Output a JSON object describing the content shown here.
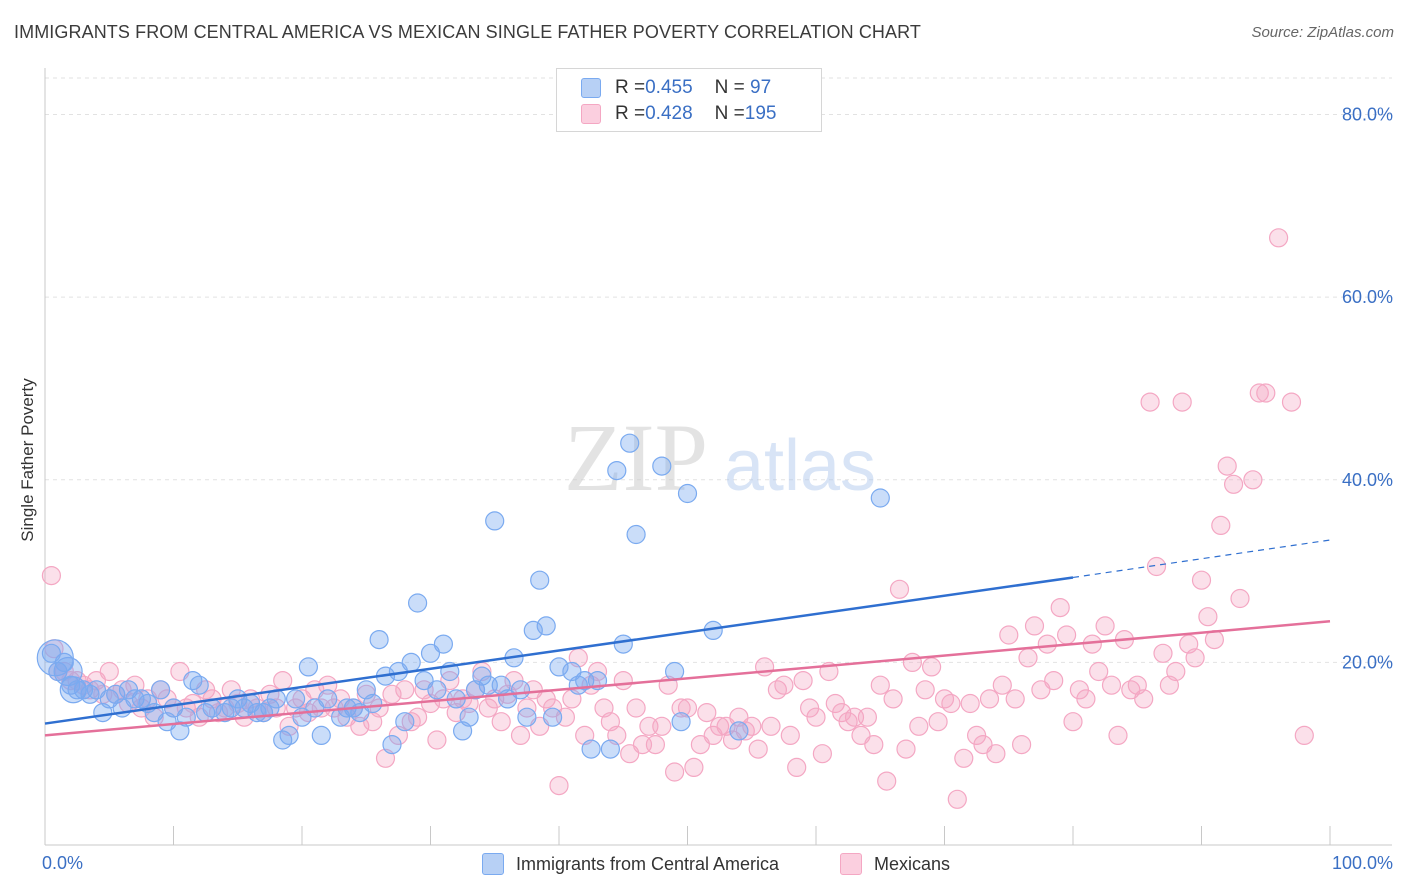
{
  "title": "IMMIGRANTS FROM CENTRAL AMERICA VS MEXICAN SINGLE FATHER POVERTY CORRELATION CHART",
  "source": "Source: ZipAtlas.com",
  "watermark": {
    "zip": "ZIP",
    "atlas": "atlas"
  },
  "legend": {
    "rows": [
      {
        "r_label": "R = ",
        "r_value": "0.455",
        "n_label": "N = ",
        "n_value": " 97",
        "color": "#7aaaf0"
      },
      {
        "r_label": "R = ",
        "r_value": "0.428",
        "n_label": "N = ",
        "n_value": "195",
        "color": "#f4a7c3"
      }
    ]
  },
  "bottom_legend": [
    {
      "label": "Immigrants from Central America",
      "color": "#7aaaf0"
    },
    {
      "label": "Mexicans",
      "color": "#f4a7c3"
    }
  ],
  "chart_data": {
    "type": "scatter",
    "ylabel": "Single Father Poverty",
    "x_tick_labels": [
      "0.0%",
      "100.0%"
    ],
    "y_tick_labels": [
      "20.0%",
      "40.0%",
      "60.0%",
      "80.0%"
    ],
    "y_ticks": [
      20,
      40,
      60,
      80
    ],
    "xlim": [
      0,
      100
    ],
    "ylim": [
      0,
      84
    ],
    "grid": true,
    "series": [
      {
        "name": "Immigrants from Central America",
        "color": "#7aaaf0",
        "line_color": "#2f6fd0",
        "trend": {
          "x0": 0,
          "y0": 13.3,
          "x1": 80,
          "y1": 29.3,
          "dash_to_x": 100,
          "dash_to_y": 33.4
        },
        "points": [
          [
            0.5,
            21
          ],
          [
            1,
            19
          ],
          [
            1.5,
            20
          ],
          [
            2,
            17.5
          ],
          [
            2.5,
            17
          ],
          [
            3,
            17
          ],
          [
            3.5,
            16.5
          ],
          [
            4,
            17
          ],
          [
            4.5,
            14.5
          ],
          [
            5,
            16
          ],
          [
            5.5,
            16.5
          ],
          [
            6,
            15
          ],
          [
            6.5,
            17
          ],
          [
            7,
            16
          ],
          [
            7.5,
            16
          ],
          [
            8,
            15.5
          ],
          [
            8.5,
            14.5
          ],
          [
            9,
            17
          ],
          [
            9.5,
            13.5
          ],
          [
            10,
            15
          ],
          [
            10.5,
            12.5
          ],
          [
            11,
            14
          ],
          [
            11.5,
            18
          ],
          [
            12,
            17.5
          ],
          [
            12.5,
            14.5
          ],
          [
            13,
            15
          ],
          [
            14,
            14.5
          ],
          [
            14.5,
            15
          ],
          [
            15,
            16
          ],
          [
            15.5,
            15
          ],
          [
            16,
            15.5
          ],
          [
            16.5,
            14.5
          ],
          [
            17,
            14.5
          ],
          [
            17.5,
            15
          ],
          [
            18,
            16
          ],
          [
            18.5,
            11.5
          ],
          [
            19,
            12
          ],
          [
            19.5,
            16
          ],
          [
            20,
            14
          ],
          [
            20.5,
            19.5
          ],
          [
            21,
            15
          ],
          [
            21.5,
            12
          ],
          [
            22,
            16
          ],
          [
            23,
            14
          ],
          [
            23.5,
            15
          ],
          [
            24,
            15
          ],
          [
            24.5,
            14.5
          ],
          [
            25,
            17
          ],
          [
            25.5,
            15.5
          ],
          [
            26,
            22.5
          ],
          [
            26.5,
            18.5
          ],
          [
            27,
            11
          ],
          [
            27.5,
            19
          ],
          [
            28,
            13.5
          ],
          [
            28.5,
            20
          ],
          [
            29,
            26.5
          ],
          [
            29.5,
            18
          ],
          [
            30,
            21
          ],
          [
            30.5,
            17
          ],
          [
            31,
            22
          ],
          [
            31.5,
            19
          ],
          [
            32,
            16
          ],
          [
            32.5,
            12.5
          ],
          [
            33,
            14
          ],
          [
            33.5,
            17
          ],
          [
            34,
            18.5
          ],
          [
            34.5,
            17.5
          ],
          [
            35,
            35.5
          ],
          [
            35.5,
            17.5
          ],
          [
            36,
            16
          ],
          [
            36.5,
            20.5
          ],
          [
            37,
            17
          ],
          [
            37.5,
            14
          ],
          [
            38,
            23.5
          ],
          [
            38.5,
            29
          ],
          [
            39,
            24
          ],
          [
            39.5,
            14
          ],
          [
            40,
            19.5
          ],
          [
            41,
            19
          ],
          [
            41.5,
            17.5
          ],
          [
            42,
            18
          ],
          [
            42.5,
            10.5
          ],
          [
            43,
            18
          ],
          [
            44,
            10.5
          ],
          [
            44.5,
            41
          ],
          [
            45,
            22
          ],
          [
            45.5,
            44
          ],
          [
            46,
            34
          ],
          [
            48,
            41.5
          ],
          [
            49,
            19
          ],
          [
            49.5,
            13.5
          ],
          [
            50,
            38.5
          ],
          [
            52,
            23.5
          ],
          [
            54,
            12.5
          ],
          [
            65,
            38
          ]
        ]
      },
      {
        "name": "Mexicans",
        "color": "#f4a7c3",
        "line_color": "#e4709a",
        "trend": {
          "x0": 0,
          "y0": 12.0,
          "x1": 100,
          "y1": 24.5
        },
        "points": [
          [
            0.5,
            29.5
          ],
          [
            0.7,
            21.5
          ],
          [
            1,
            19
          ],
          [
            1.5,
            19
          ],
          [
            2,
            18
          ],
          [
            2.5,
            18
          ],
          [
            3,
            17.5
          ],
          [
            3.5,
            17
          ],
          [
            4,
            18
          ],
          [
            4.5,
            16.5
          ],
          [
            5,
            19
          ],
          [
            5.5,
            16.5
          ],
          [
            6,
            17
          ],
          [
            6.5,
            15.5
          ],
          [
            7,
            17.5
          ],
          [
            7.5,
            15
          ],
          [
            8,
            16
          ],
          [
            8.5,
            14
          ],
          [
            9,
            17
          ],
          [
            9.5,
            16
          ],
          [
            10,
            15
          ],
          [
            10.5,
            19
          ],
          [
            11,
            15
          ],
          [
            11.5,
            15.5
          ],
          [
            12,
            14
          ],
          [
            12.5,
            17
          ],
          [
            13,
            16
          ],
          [
            13.5,
            14.5
          ],
          [
            14,
            15
          ],
          [
            14.5,
            17
          ],
          [
            15,
            15.5
          ],
          [
            15.5,
            14
          ],
          [
            16,
            16
          ],
          [
            16.5,
            15
          ],
          [
            17,
            14.5
          ],
          [
            17.5,
            16.5
          ],
          [
            18,
            15
          ],
          [
            18.5,
            18
          ],
          [
            19,
            13
          ],
          [
            19.5,
            15
          ],
          [
            20,
            16
          ],
          [
            20.5,
            14.5
          ],
          [
            21,
            17
          ],
          [
            21.5,
            15
          ],
          [
            22,
            17.5
          ],
          [
            22.5,
            15
          ],
          [
            23,
            16
          ],
          [
            23.5,
            14
          ],
          [
            24,
            15
          ],
          [
            24.5,
            13
          ],
          [
            25,
            16.5
          ],
          [
            25.5,
            13.5
          ],
          [
            26,
            15
          ],
          [
            26.5,
            9.5
          ],
          [
            27,
            16.5
          ],
          [
            27.5,
            12
          ],
          [
            28,
            17
          ],
          [
            28.5,
            13.5
          ],
          [
            29,
            14
          ],
          [
            29.5,
            17
          ],
          [
            30,
            15.5
          ],
          [
            30.5,
            11.5
          ],
          [
            31,
            16
          ],
          [
            31.5,
            18
          ],
          [
            32,
            14.5
          ],
          [
            32.5,
            16
          ],
          [
            33,
            15.5
          ],
          [
            33.5,
            17
          ],
          [
            34,
            19
          ],
          [
            34.5,
            15
          ],
          [
            35,
            16
          ],
          [
            35.5,
            13.5
          ],
          [
            36,
            16.5
          ],
          [
            36.5,
            18
          ],
          [
            37,
            12
          ],
          [
            37.5,
            15
          ],
          [
            38,
            17
          ],
          [
            38.5,
            13
          ],
          [
            39,
            16
          ],
          [
            39.5,
            15
          ],
          [
            40,
            6.5
          ],
          [
            40.5,
            14
          ],
          [
            41,
            16
          ],
          [
            41.5,
            20.5
          ],
          [
            42,
            12
          ],
          [
            42.5,
            17.5
          ],
          [
            43,
            19
          ],
          [
            43.5,
            15
          ],
          [
            44,
            13.5
          ],
          [
            44.5,
            12
          ],
          [
            45,
            18
          ],
          [
            45.5,
            10
          ],
          [
            46,
            15
          ],
          [
            46.5,
            11
          ],
          [
            47,
            13
          ],
          [
            47.5,
            11
          ],
          [
            48,
            13
          ],
          [
            48.5,
            17.5
          ],
          [
            49,
            8
          ],
          [
            49.5,
            15
          ],
          [
            50,
            15
          ],
          [
            50.5,
            8.5
          ],
          [
            51,
            11
          ],
          [
            51.5,
            14.5
          ],
          [
            52,
            12
          ],
          [
            52.5,
            13
          ],
          [
            53,
            13
          ],
          [
            53.5,
            11.5
          ],
          [
            54,
            14
          ],
          [
            54.5,
            12.5
          ],
          [
            55,
            13
          ],
          [
            55.5,
            10.5
          ],
          [
            56,
            19.5
          ],
          [
            56.5,
            13
          ],
          [
            57,
            17
          ],
          [
            57.5,
            17.5
          ],
          [
            58,
            12
          ],
          [
            58.5,
            8.5
          ],
          [
            59,
            18
          ],
          [
            59.5,
            15
          ],
          [
            60,
            14
          ],
          [
            60.5,
            10
          ],
          [
            61,
            19
          ],
          [
            61.5,
            15.5
          ],
          [
            62,
            14.5
          ],
          [
            62.5,
            13.5
          ],
          [
            63,
            14
          ],
          [
            63.5,
            12
          ],
          [
            64,
            14
          ],
          [
            64.5,
            11
          ],
          [
            65,
            17.5
          ],
          [
            65.5,
            7
          ],
          [
            66,
            16
          ],
          [
            66.5,
            28
          ],
          [
            67,
            10.5
          ],
          [
            67.5,
            20
          ],
          [
            68,
            13
          ],
          [
            68.5,
            17
          ],
          [
            69,
            19.5
          ],
          [
            69.5,
            13.5
          ],
          [
            70,
            16
          ],
          [
            70.5,
            15.5
          ],
          [
            71,
            5
          ],
          [
            71.5,
            9.5
          ],
          [
            72,
            15.5
          ],
          [
            72.5,
            12
          ],
          [
            73,
            11
          ],
          [
            73.5,
            16
          ],
          [
            74,
            10
          ],
          [
            74.5,
            17.5
          ],
          [
            75,
            23
          ],
          [
            75.5,
            16
          ],
          [
            76,
            11
          ],
          [
            76.5,
            20.5
          ],
          [
            77,
            24
          ],
          [
            77.5,
            17
          ],
          [
            78,
            22
          ],
          [
            78.5,
            18
          ],
          [
            79,
            26
          ],
          [
            79.5,
            23
          ],
          [
            80,
            13.5
          ],
          [
            80.5,
            17
          ],
          [
            81,
            16
          ],
          [
            81.5,
            22
          ],
          [
            82,
            19
          ],
          [
            82.5,
            24
          ],
          [
            83,
            17.5
          ],
          [
            83.5,
            12
          ],
          [
            84,
            22.5
          ],
          [
            84.5,
            17
          ],
          [
            85,
            17.5
          ],
          [
            85.5,
            16
          ],
          [
            86,
            48.5
          ],
          [
            86.5,
            30.5
          ],
          [
            87,
            21
          ],
          [
            87.5,
            17.5
          ],
          [
            88,
            19
          ],
          [
            88.5,
            48.5
          ],
          [
            89,
            22
          ],
          [
            89.5,
            20.5
          ],
          [
            90,
            29
          ],
          [
            90.5,
            25
          ],
          [
            91,
            22.5
          ],
          [
            91.5,
            35
          ],
          [
            92,
            41.5
          ],
          [
            92.5,
            39.5
          ],
          [
            93,
            27
          ],
          [
            94,
            40
          ],
          [
            94.5,
            49.5
          ],
          [
            95,
            49.5
          ],
          [
            96,
            66.5
          ],
          [
            97,
            48.5
          ],
          [
            98,
            12
          ]
        ]
      }
    ]
  }
}
